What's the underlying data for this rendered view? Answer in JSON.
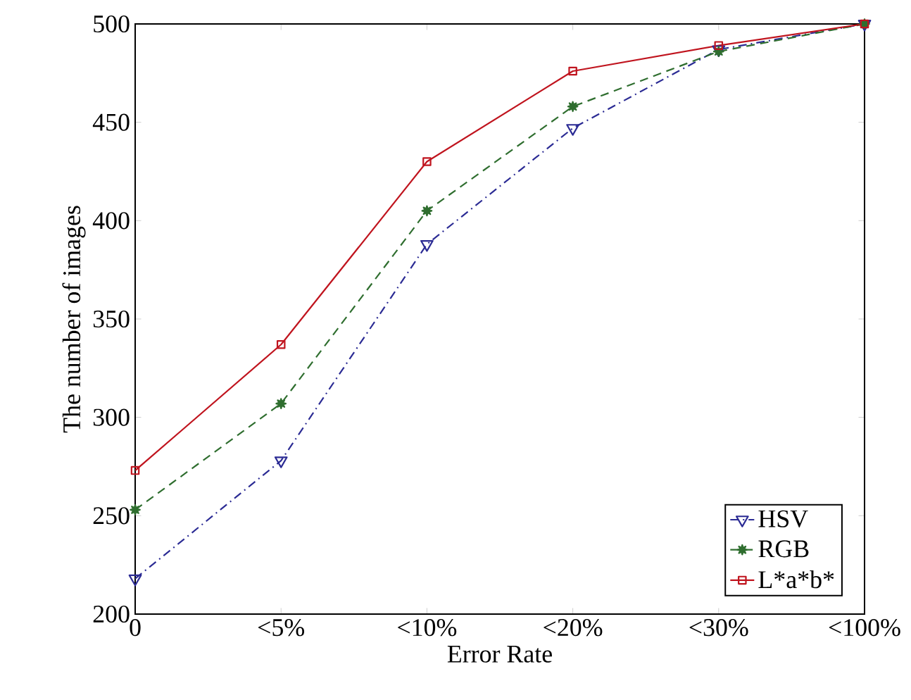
{
  "chart_data": {
    "type": "line",
    "xlabel": "Error Rate",
    "ylabel": "The number of images",
    "categories": [
      "0",
      "<5%",
      "<10%",
      "<20%",
      "<30%",
      "<100%"
    ],
    "ylim": [
      200,
      500
    ],
    "yticks": [
      200,
      250,
      300,
      350,
      400,
      450,
      500
    ],
    "grid": false,
    "legend": "bottom right",
    "series": [
      {
        "name": "HSV",
        "color": "#2b2b94",
        "marker": "triangle",
        "line_style": "dashdot",
        "values": [
          218,
          278,
          388,
          447,
          487,
          500
        ]
      },
      {
        "name": "RGB",
        "color": "#2f6e2f",
        "marker": "star",
        "line_style": "dashed",
        "values": [
          253,
          307,
          405,
          458,
          486,
          500
        ]
      },
      {
        "name": "L*a*b*",
        "color": "#c0141e",
        "marker": "square",
        "line_style": "solid",
        "values": [
          273,
          337,
          430,
          476,
          489,
          500
        ]
      }
    ]
  }
}
